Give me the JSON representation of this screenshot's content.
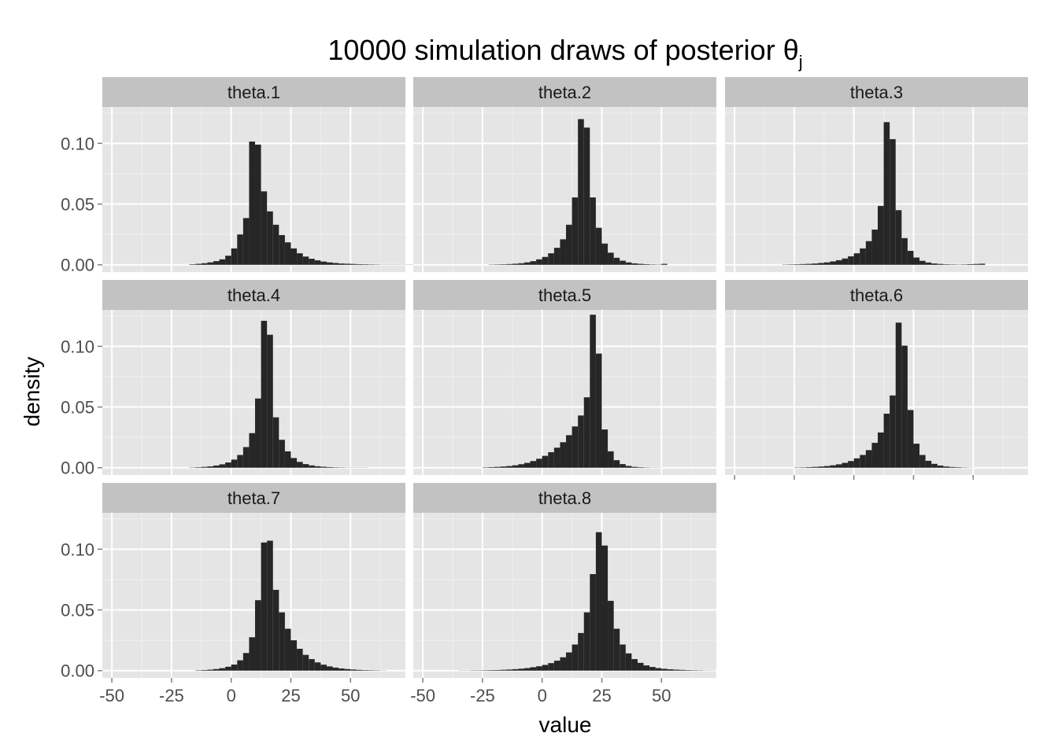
{
  "chart_data": {
    "type": "bar",
    "title": "10000 simulation draws of posterior θ",
    "title_subscript": "j",
    "xlabel": "value",
    "ylabel": "density",
    "xlim": [
      -54,
      73
    ],
    "ylim": [
      -0.006,
      0.13
    ],
    "x_ticks": [
      -50,
      -25,
      0,
      25,
      50
    ],
    "x_tick_labels": [
      "-50",
      "-25",
      "0",
      "25",
      "50"
    ],
    "y_ticks": [
      0.0,
      0.05,
      0.1
    ],
    "y_tick_labels": [
      "0.00",
      "0.05",
      "0.10"
    ],
    "grid": true,
    "bin_width": 2.5,
    "colors": {
      "panel_bg": "#e5e5e5",
      "strip_bg": "#c2c2c2",
      "grid_major": "#ffffff",
      "grid_minor": "#f0f0f0",
      "bar_fill": "#262626"
    },
    "series": [
      {
        "name": "theta.1",
        "x_start": -17.5,
        "values": [
          0.0004,
          0.0008,
          0.0013,
          0.002,
          0.003,
          0.0045,
          0.0075,
          0.0135,
          0.025,
          0.0385,
          0.1015,
          0.099,
          0.0605,
          0.044,
          0.033,
          0.0245,
          0.0185,
          0.0135,
          0.0095,
          0.0068,
          0.005,
          0.0037,
          0.0027,
          0.002,
          0.0015,
          0.0011,
          0.0009,
          0.0007,
          0.0005,
          0.0004,
          0.0003,
          0.0002,
          0.0001,
          0.0001,
          0.0001,
          0.0001,
          0.0001,
          0.0001,
          0,
          0,
          0.0008
        ]
      },
      {
        "name": "theta.2",
        "x_start": -22.5,
        "values": [
          0.0002,
          0.0003,
          0.0004,
          0.0006,
          0.0009,
          0.0013,
          0.002,
          0.003,
          0.0045,
          0.0065,
          0.0095,
          0.014,
          0.021,
          0.033,
          0.0555,
          0.12,
          0.113,
          0.0555,
          0.0305,
          0.0175,
          0.01,
          0.0058,
          0.0034,
          0.002,
          0.0012,
          0.0008,
          0.0005,
          0.0003,
          0.0002,
          0.0008
        ]
      },
      {
        "name": "theta.3",
        "x_start": -30,
        "values": [
          0.0002,
          0.0003,
          0.0004,
          0.0006,
          0.0008,
          0.0011,
          0.0015,
          0.002,
          0.0028,
          0.0038,
          0.0052,
          0.007,
          0.0095,
          0.0135,
          0.0195,
          0.029,
          0.0485,
          0.1175,
          0.1035,
          0.045,
          0.022,
          0.0115,
          0.006,
          0.0033,
          0.0019,
          0.0011,
          0.0007,
          0.0004,
          0.0003,
          0.0002,
          0.0003,
          0.0005,
          0.0007,
          0.0009
        ]
      },
      {
        "name": "theta.4",
        "x_start": -17.5,
        "values": [
          0.0002,
          0.0004,
          0.0007,
          0.0011,
          0.0018,
          0.0028,
          0.0043,
          0.0067,
          0.0105,
          0.017,
          0.0285,
          0.057,
          0.121,
          0.1095,
          0.0415,
          0.023,
          0.0135,
          0.008,
          0.0048,
          0.003,
          0.0019,
          0.0012,
          0.0008,
          0.0005,
          0.0003,
          0.0002,
          0.0001,
          0.0001,
          0.0001,
          0.0001
        ]
      },
      {
        "name": "theta.5",
        "x_start": -25,
        "values": [
          0.0003,
          0.0005,
          0.0007,
          0.001,
          0.0014,
          0.002,
          0.0029,
          0.004,
          0.0055,
          0.0074,
          0.0098,
          0.0128,
          0.0165,
          0.021,
          0.0268,
          0.034,
          0.043,
          0.058,
          0.126,
          0.094,
          0.0315,
          0.0135,
          0.0062,
          0.003,
          0.0015,
          0.0007,
          0.0004,
          0.0002,
          0.0001,
          0.0001
        ]
      },
      {
        "name": "theta.6",
        "x_start": -25,
        "values": [
          0.0002,
          0.0003,
          0.0005,
          0.0007,
          0.001,
          0.0014,
          0.002,
          0.0028,
          0.004,
          0.0055,
          0.0077,
          0.0105,
          0.0145,
          0.0205,
          0.029,
          0.0445,
          0.0595,
          0.1195,
          0.1005,
          0.0475,
          0.0198,
          0.0105,
          0.0057,
          0.0032,
          0.0018,
          0.001,
          0.0006,
          0.0004,
          0.0002,
          0.0001
        ]
      },
      {
        "name": "theta.7",
        "x_start": -15,
        "values": [
          0.0003,
          0.0005,
          0.0008,
          0.0013,
          0.002,
          0.0032,
          0.005,
          0.0085,
          0.0145,
          0.0275,
          0.058,
          0.1055,
          0.107,
          0.0665,
          0.048,
          0.0345,
          0.025,
          0.018,
          0.013,
          0.0095,
          0.0068,
          0.0049,
          0.0035,
          0.0025,
          0.0018,
          0.0013,
          0.0009,
          0.0006,
          0.0004,
          0.0003,
          0.0002,
          0.0001
        ]
      },
      {
        "name": "theta.8",
        "x_start": -35,
        "values": [
          0.0001,
          0.0001,
          0.0002,
          0.0002,
          0.0003,
          0.0004,
          0.0005,
          0.0007,
          0.0009,
          0.0012,
          0.0016,
          0.0021,
          0.0028,
          0.0036,
          0.0047,
          0.0062,
          0.0082,
          0.011,
          0.015,
          0.0215,
          0.031,
          0.048,
          0.0795,
          0.114,
          0.103,
          0.0575,
          0.0345,
          0.0215,
          0.0142,
          0.0095,
          0.0064,
          0.0043,
          0.003,
          0.0021,
          0.0015,
          0.0011,
          0.0008,
          0.0006,
          0.0004,
          0.0003,
          0.0002,
          0.0001,
          0.0001
        ]
      }
    ]
  }
}
